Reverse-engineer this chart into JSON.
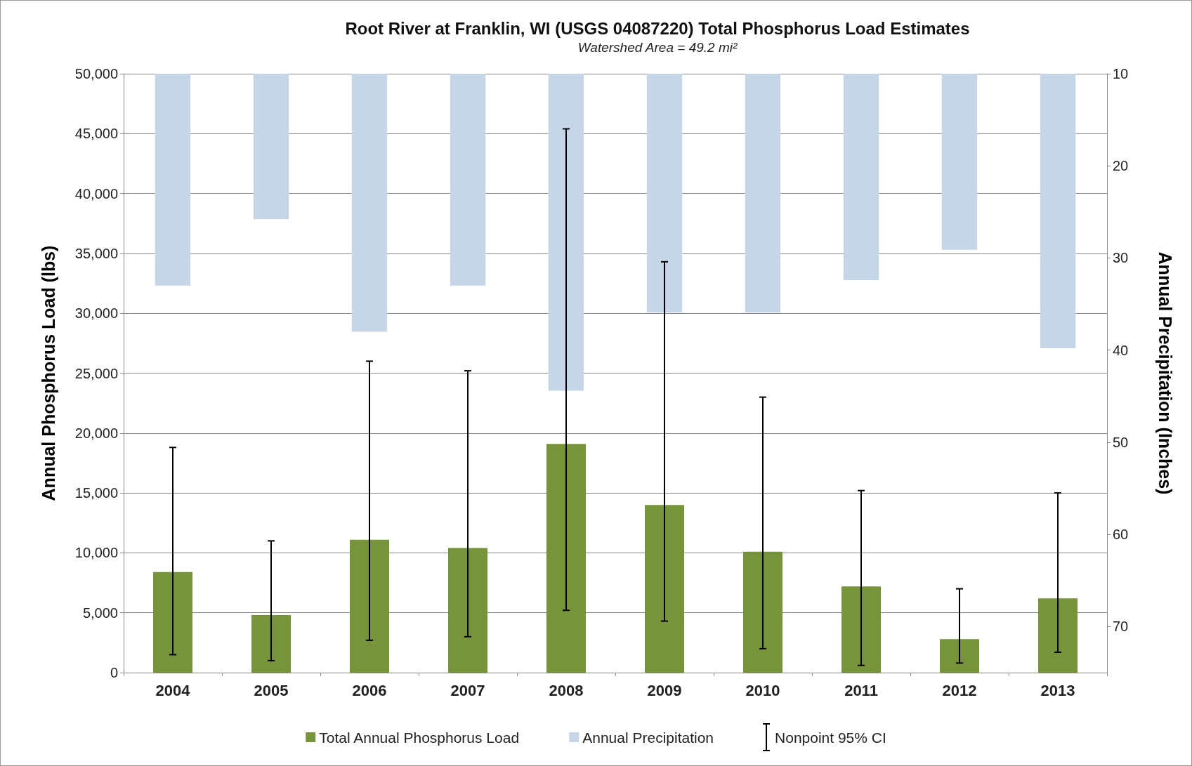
{
  "chart_data": {
    "type": "bar",
    "title": "Root River at Franklin, WI (USGS 04087220) Total Phosphorus Load Estimates",
    "subtitle": "Watershed Area = 49.2 mi²",
    "categories": [
      "2004",
      "2005",
      "2006",
      "2007",
      "2008",
      "2009",
      "2010",
      "2011",
      "2012",
      "2013"
    ],
    "series": [
      {
        "name": "Total Annual Phosphorus Load",
        "color": "#77933c",
        "values": [
          8400,
          4800,
          11100,
          10400,
          19100,
          14000,
          10100,
          7200,
          2800,
          6200
        ],
        "errors": [
          [
            1500,
            18800
          ],
          [
            1000,
            11000
          ],
          [
            2700,
            26000
          ],
          [
            3000,
            25200
          ],
          [
            5200,
            45400
          ],
          [
            4300,
            34300
          ],
          [
            2000,
            23000
          ],
          [
            600,
            15200
          ],
          [
            800,
            7000
          ],
          [
            1700,
            15000
          ]
        ]
      },
      {
        "name": "Annual Precipitation",
        "color": "#c6d5e8",
        "axis": "y2",
        "values": [
          33.0,
          25.8,
          38.0,
          33.0,
          44.4,
          35.9,
          35.9,
          32.4,
          29.1,
          39.8
        ]
      }
    ],
    "annotations": [
      "Nonpoint 95% CI"
    ],
    "ylabel": "Annual Phosphorus Load (lbs)",
    "y2label": "Annual Precipitation (Inches)",
    "ylim": [
      0,
      50000
    ],
    "yticks": [
      0,
      {
        "value": 5000,
        "label": "5,000"
      },
      {
        "value": 10000,
        "label": "10,000"
      },
      {
        "value": 15000,
        "label": "15,000"
      },
      {
        "value": 20000,
        "label": "20,000"
      },
      {
        "value": 25000,
        "label": "25,000"
      },
      {
        "value": 30000,
        "label": "30,000"
      },
      {
        "value": 35000,
        "label": "35,000"
      },
      {
        "value": 40000,
        "label": "40,000"
      },
      {
        "value": 45000,
        "label": "45,000"
      },
      {
        "value": 50000,
        "label": "50,000"
      }
    ],
    "y2lim": [
      75,
      10
    ],
    "y2ticks": [
      10,
      20,
      30,
      40,
      50,
      60,
      70
    ],
    "grid": "y",
    "legend": "bottom"
  }
}
